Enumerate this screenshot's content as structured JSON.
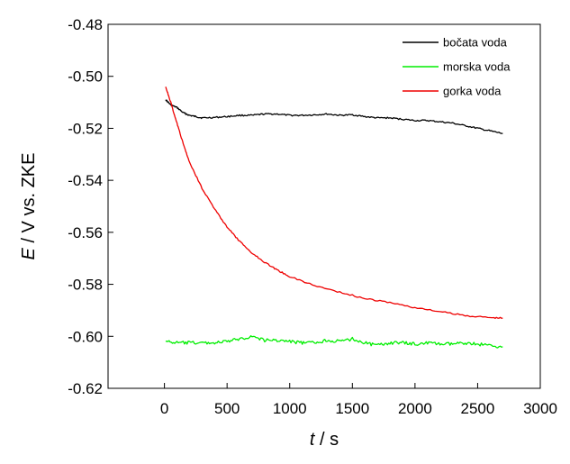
{
  "chart_data": {
    "type": "line",
    "xlabel_var": "t",
    "xlabel_unit": " / s",
    "ylabel_var": "E",
    "ylabel_unit": " / V vs. ZKE",
    "xlim": [
      -450,
      3000
    ],
    "ylim": [
      -0.62,
      -0.48
    ],
    "xticks": [
      0,
      500,
      1000,
      1500,
      2000,
      2500,
      3000
    ],
    "yticks": [
      -0.62,
      -0.6,
      -0.58,
      -0.56,
      -0.54,
      -0.52,
      -0.5,
      -0.48
    ],
    "x_tick_labels": [
      "0",
      "500",
      "1000",
      "1500",
      "2000",
      "2500",
      "3000"
    ],
    "y_tick_labels": [
      "-0.62",
      "-0.60",
      "-0.58",
      "-0.56",
      "-0.54",
      "-0.52",
      "-0.50",
      "-0.48"
    ],
    "legend_position": "top-right",
    "series": [
      {
        "name": "bočata voda",
        "color": "#000000",
        "x": [
          10,
          50,
          100,
          150,
          200,
          250,
          300,
          400,
          500,
          600,
          700,
          800,
          900,
          1000,
          1100,
          1200,
          1300,
          1400,
          1500,
          1600,
          1700,
          1800,
          1900,
          2000,
          2100,
          2200,
          2300,
          2400,
          2500,
          2600,
          2700
        ],
        "y": [
          -0.509,
          -0.511,
          -0.512,
          -0.514,
          -0.515,
          -0.5155,
          -0.516,
          -0.5158,
          -0.5155,
          -0.515,
          -0.515,
          -0.5145,
          -0.5145,
          -0.515,
          -0.515,
          -0.5148,
          -0.5145,
          -0.515,
          -0.5148,
          -0.5155,
          -0.516,
          -0.516,
          -0.5165,
          -0.517,
          -0.517,
          -0.5175,
          -0.518,
          -0.519,
          -0.52,
          -0.521,
          -0.522
        ]
      },
      {
        "name": "morska voda",
        "color": "#00ee00",
        "x": [
          10,
          100,
          200,
          300,
          400,
          500,
          600,
          700,
          800,
          900,
          1000,
          1100,
          1200,
          1300,
          1400,
          1500,
          1600,
          1700,
          1800,
          1900,
          2000,
          2100,
          2200,
          2300,
          2400,
          2500,
          2600,
          2700
        ],
        "y": [
          -0.602,
          -0.6025,
          -0.6025,
          -0.6025,
          -0.6025,
          -0.602,
          -0.601,
          -0.6,
          -0.6015,
          -0.6015,
          -0.602,
          -0.6025,
          -0.6025,
          -0.6015,
          -0.602,
          -0.601,
          -0.6025,
          -0.6035,
          -0.6025,
          -0.6025,
          -0.603,
          -0.6025,
          -0.603,
          -0.603,
          -0.6025,
          -0.603,
          -0.6035,
          -0.604
        ]
      },
      {
        "name": "gorka voda",
        "color": "#ee0000",
        "x": [
          10,
          50,
          100,
          150,
          200,
          300,
          400,
          500,
          600,
          700,
          800,
          900,
          1000,
          1200,
          1400,
          1600,
          1800,
          2000,
          2200,
          2400,
          2600,
          2700
        ],
        "y": [
          -0.504,
          -0.51,
          -0.518,
          -0.526,
          -0.533,
          -0.543,
          -0.551,
          -0.558,
          -0.5635,
          -0.568,
          -0.5715,
          -0.5745,
          -0.577,
          -0.5805,
          -0.583,
          -0.5855,
          -0.587,
          -0.589,
          -0.5905,
          -0.592,
          -0.5928,
          -0.593
        ]
      }
    ]
  }
}
